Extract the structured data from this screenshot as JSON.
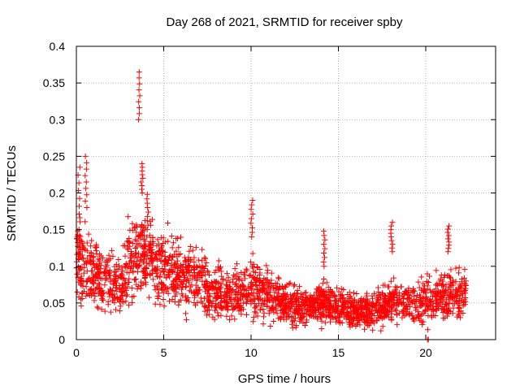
{
  "chart_data": {
    "type": "scatter",
    "title": "Day 268 of 2021, SRMTID for receiver spby",
    "xlabel": "GPS time / hours",
    "ylabel": "SRMTID / TECUs",
    "xlim": [
      0,
      24
    ],
    "ylim": [
      0,
      0.4
    ],
    "xticks": [
      0,
      5,
      10,
      15,
      20
    ],
    "xtick_labels": [
      "0",
      "5",
      "10",
      "15",
      "20"
    ],
    "yticks": [
      0,
      0.05,
      0.1,
      0.15,
      0.2,
      0.25,
      0.3,
      0.35,
      0.4
    ],
    "ytick_labels": [
      "0",
      "0.05",
      "0.1",
      "0.15",
      "0.2",
      "0.25",
      "0.3",
      "0.35",
      "0.4"
    ],
    "grid": true,
    "marker": "+",
    "color": "#ff0000",
    "x_extent": [
      0,
      22.3
    ],
    "trend": [
      {
        "x": 0.0,
        "y": 0.12
      },
      {
        "x": 0.5,
        "y": 0.1
      },
      {
        "x": 1.0,
        "y": 0.09
      },
      {
        "x": 2.0,
        "y": 0.08
      },
      {
        "x": 2.5,
        "y": 0.07
      },
      {
        "x": 3.0,
        "y": 0.1
      },
      {
        "x": 3.5,
        "y": 0.12
      },
      {
        "x": 4.0,
        "y": 0.115
      },
      {
        "x": 5.0,
        "y": 0.1
      },
      {
        "x": 6.0,
        "y": 0.085
      },
      {
        "x": 7.0,
        "y": 0.08
      },
      {
        "x": 8.0,
        "y": 0.065
      },
      {
        "x": 9.0,
        "y": 0.06
      },
      {
        "x": 10.0,
        "y": 0.07
      },
      {
        "x": 11.0,
        "y": 0.065
      },
      {
        "x": 12.0,
        "y": 0.045
      },
      {
        "x": 13.0,
        "y": 0.045
      },
      {
        "x": 14.0,
        "y": 0.05
      },
      {
        "x": 15.0,
        "y": 0.045
      },
      {
        "x": 16.0,
        "y": 0.035
      },
      {
        "x": 17.0,
        "y": 0.04
      },
      {
        "x": 18.0,
        "y": 0.05
      },
      {
        "x": 19.0,
        "y": 0.05
      },
      {
        "x": 20.0,
        "y": 0.05
      },
      {
        "x": 21.0,
        "y": 0.06
      },
      {
        "x": 22.3,
        "y": 0.06
      }
    ],
    "spike_clusters": [
      {
        "x": 0.15,
        "y_min": 0.15,
        "y_max": 0.235
      },
      {
        "x": 0.55,
        "y_min": 0.18,
        "y_max": 0.25
      },
      {
        "x": 3.6,
        "y_min": 0.3,
        "y_max": 0.365
      },
      {
        "x": 3.75,
        "y_min": 0.2,
        "y_max": 0.24
      },
      {
        "x": 4.1,
        "y_min": 0.15,
        "y_max": 0.198
      },
      {
        "x": 10.05,
        "y_min": 0.14,
        "y_max": 0.19
      },
      {
        "x": 18.05,
        "y_min": 0.12,
        "y_max": 0.16
      },
      {
        "x": 21.3,
        "y_min": 0.12,
        "y_max": 0.155
      },
      {
        "x": 14.2,
        "y_min": 0.1,
        "y_max": 0.148
      }
    ],
    "zero_points": [
      {
        "x": 20.1,
        "y": 0.0
      },
      {
        "x": 20.15,
        "y": 0.0
      }
    ]
  }
}
